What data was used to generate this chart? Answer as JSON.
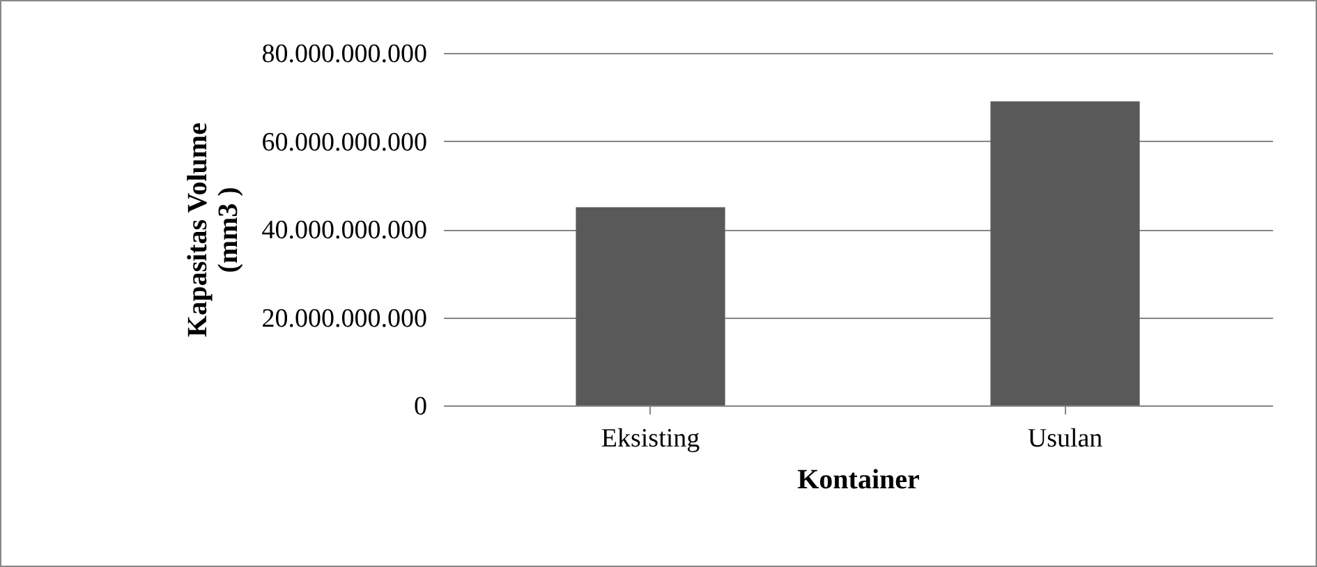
{
  "chart_data": {
    "type": "bar",
    "xlabel": "Kontainer",
    "ylabel": "Kapasitas Volume\n(mm3 )",
    "categories": [
      "Eksisting",
      "Usulan"
    ],
    "values": [
      45000000000,
      69000000000
    ],
    "color": "#595959",
    "ylim": [
      0,
      80000000000
    ],
    "yticks": [
      {
        "value": 0,
        "label": "0"
      },
      {
        "value": 20000000000,
        "label": "20.000.000.000"
      },
      {
        "value": 40000000000,
        "label": "40.000.000.000"
      },
      {
        "value": 60000000000,
        "label": "60.000.000.000"
      },
      {
        "value": 80000000000,
        "label": "80.000.000.000"
      }
    ],
    "grid": "y"
  }
}
